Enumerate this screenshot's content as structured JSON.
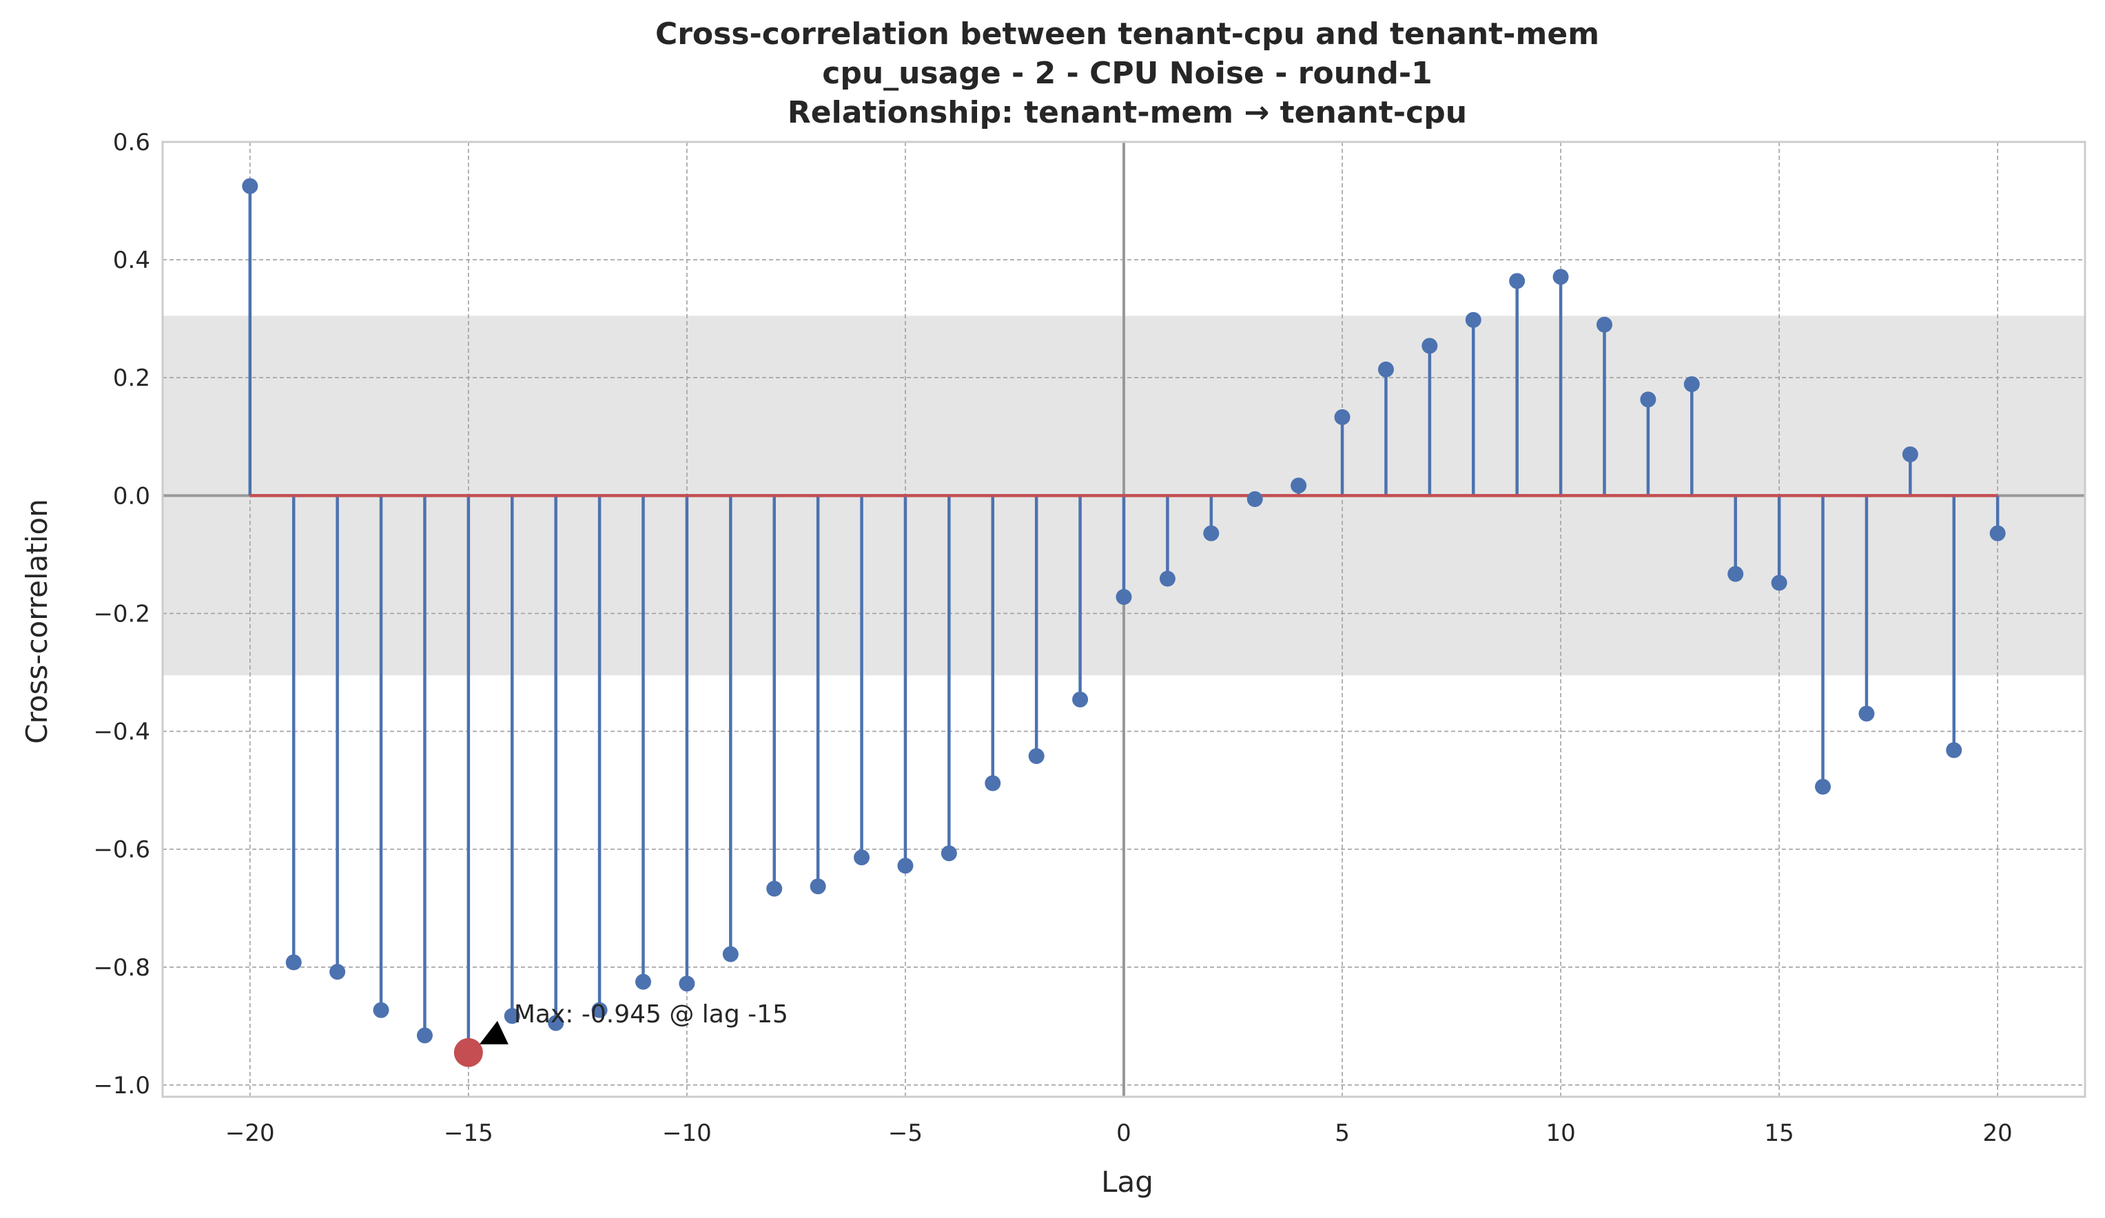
{
  "chart_data": {
    "type": "stem",
    "title_lines": [
      "Cross-correlation between tenant-cpu and tenant-mem",
      "cpu_usage - 2 - CPU Noise - round-1",
      "Relationship: tenant-mem → tenant-cpu"
    ],
    "xlabel": "Lag",
    "ylabel": "Cross-correlation",
    "xlim": [
      -22,
      22
    ],
    "ylim": [
      -1.02,
      0.6
    ],
    "xticks": [
      -20,
      -15,
      -10,
      -5,
      0,
      5,
      10,
      15,
      20
    ],
    "xtick_labels": [
      "−20",
      "−15",
      "−10",
      "−5",
      "0",
      "5",
      "10",
      "15",
      "20"
    ],
    "yticks": [
      -1.0,
      -0.8,
      -0.6,
      -0.4,
      -0.2,
      0.0,
      0.2,
      0.4,
      0.6
    ],
    "ytick_labels": [
      "−1.0",
      "−0.8",
      "−0.6",
      "−0.4",
      "−0.2",
      "0.0",
      "0.2",
      "0.4",
      "0.6"
    ],
    "grid": true,
    "confidence_band": [
      -0.305,
      0.305
    ],
    "lags": [
      -20,
      -19,
      -18,
      -17,
      -16,
      -15,
      -14,
      -13,
      -12,
      -11,
      -10,
      -9,
      -8,
      -7,
      -6,
      -5,
      -4,
      -3,
      -2,
      -1,
      0,
      1,
      2,
      3,
      4,
      5,
      6,
      7,
      8,
      9,
      10,
      11,
      12,
      13,
      14,
      15,
      16,
      17,
      18,
      19,
      20
    ],
    "values": [
      0.525,
      -0.792,
      -0.808,
      -0.873,
      -0.916,
      -0.945,
      -0.883,
      -0.895,
      -0.873,
      -0.825,
      -0.828,
      -0.778,
      -0.667,
      -0.663,
      -0.614,
      -0.628,
      -0.607,
      -0.488,
      -0.442,
      -0.346,
      -0.172,
      -0.141,
      -0.064,
      -0.006,
      0.017,
      0.133,
      0.214,
      0.254,
      0.298,
      0.364,
      0.371,
      0.29,
      0.163,
      0.189,
      -0.133,
      -0.148,
      -0.494,
      -0.37,
      0.07,
      -0.432,
      -0.064
    ],
    "highlight": {
      "lag": -15,
      "value": -0.945,
      "label": "Max: -0.945 @ lag -15"
    },
    "colors": {
      "stem": "#4c72b0",
      "baseline": "#c44e52",
      "highlight": "#c44e52",
      "band": "#e5e5e5",
      "zero_line": "#999999",
      "grid": "#a0a0a0",
      "frame": "#cccccc"
    }
  }
}
